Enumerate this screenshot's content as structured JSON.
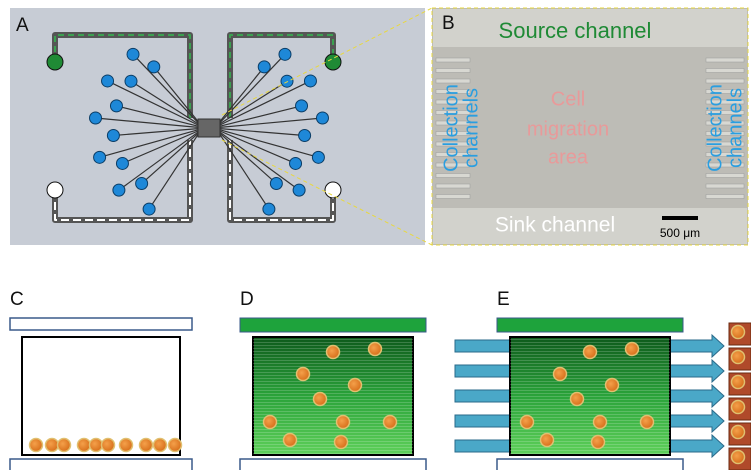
{
  "panels": {
    "a": {
      "label": "A"
    },
    "b": {
      "label": "B",
      "source": "Source channel",
      "sink": "Sink channel",
      "collection_left": [
        "Collection",
        "channels"
      ],
      "collection_right": [
        "Collection",
        "channels"
      ],
      "migration": [
        "Cell",
        "migration",
        "area"
      ],
      "scale": "500 μm"
    },
    "c": {
      "label": "C"
    },
    "d": {
      "label": "D"
    },
    "e": {
      "label": "E"
    }
  }
}
